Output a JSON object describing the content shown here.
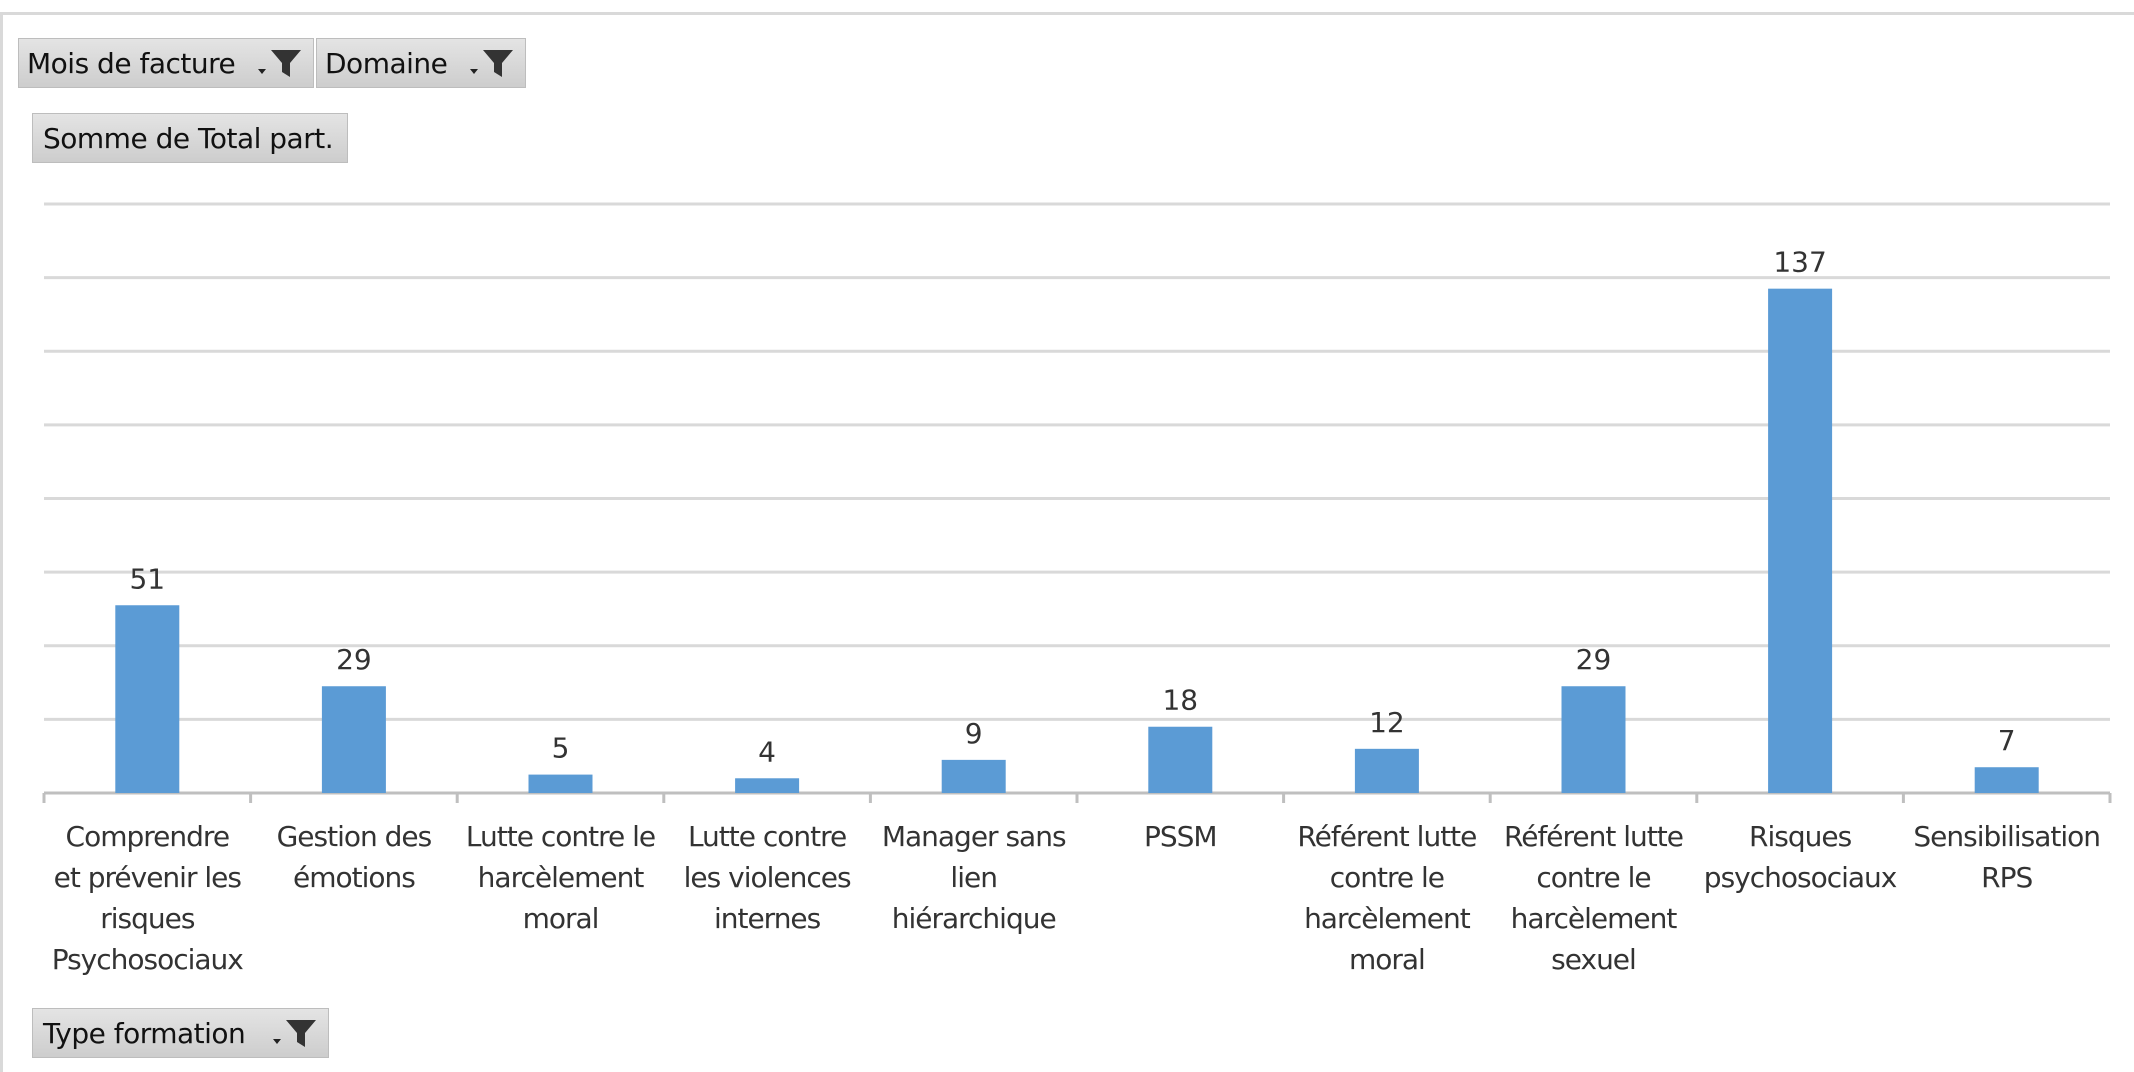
{
  "filters": {
    "mois_de_facture": "Mois de facture",
    "domaine": "Domaine",
    "values_field": "Somme de Total part.",
    "axis_field": "Type formation"
  },
  "colors": {
    "bar": "#5b9bd5",
    "grid": "#d9d9d9",
    "axis": "#bfbfbf",
    "text": "#333333"
  },
  "chart_data": {
    "type": "bar",
    "title": "",
    "xlabel": "",
    "ylabel": "",
    "categories": [
      "Comprendre et prévenir les risques Psychosociaux",
      "Gestion des émotions",
      "Lutte contre le harcèlement moral",
      "Lutte contre les violences internes",
      "Manager sans lien hiérarchique",
      "PSSM",
      "Référent lutte contre le harcèlement moral",
      "Référent lutte contre le harcèlement sexuel",
      "Risques psychosociaux",
      "Sensibilisation RPS"
    ],
    "category_lines": [
      [
        "Comprendre",
        "et prévenir les",
        "risques",
        "Psychosociaux"
      ],
      [
        "Gestion des",
        "émotions"
      ],
      [
        "Lutte contre le",
        "harcèlement",
        "moral"
      ],
      [
        "Lutte contre",
        "les violences",
        "internes"
      ],
      [
        "Manager sans",
        "lien",
        "hiérarchique"
      ],
      [
        "PSSM"
      ],
      [
        "Référent lutte",
        "contre le",
        "harcèlement",
        "moral"
      ],
      [
        "Référent lutte",
        "contre le",
        "harcèlement",
        "sexuel"
      ],
      [
        "Risques",
        "psychosociaux"
      ],
      [
        "Sensibilisation",
        "RPS"
      ]
    ],
    "values": [
      51,
      29,
      5,
      4,
      9,
      18,
      12,
      29,
      137,
      7
    ],
    "ylim": [
      0,
      160
    ],
    "grid": true,
    "legend": "none",
    "data_labels": true
  }
}
